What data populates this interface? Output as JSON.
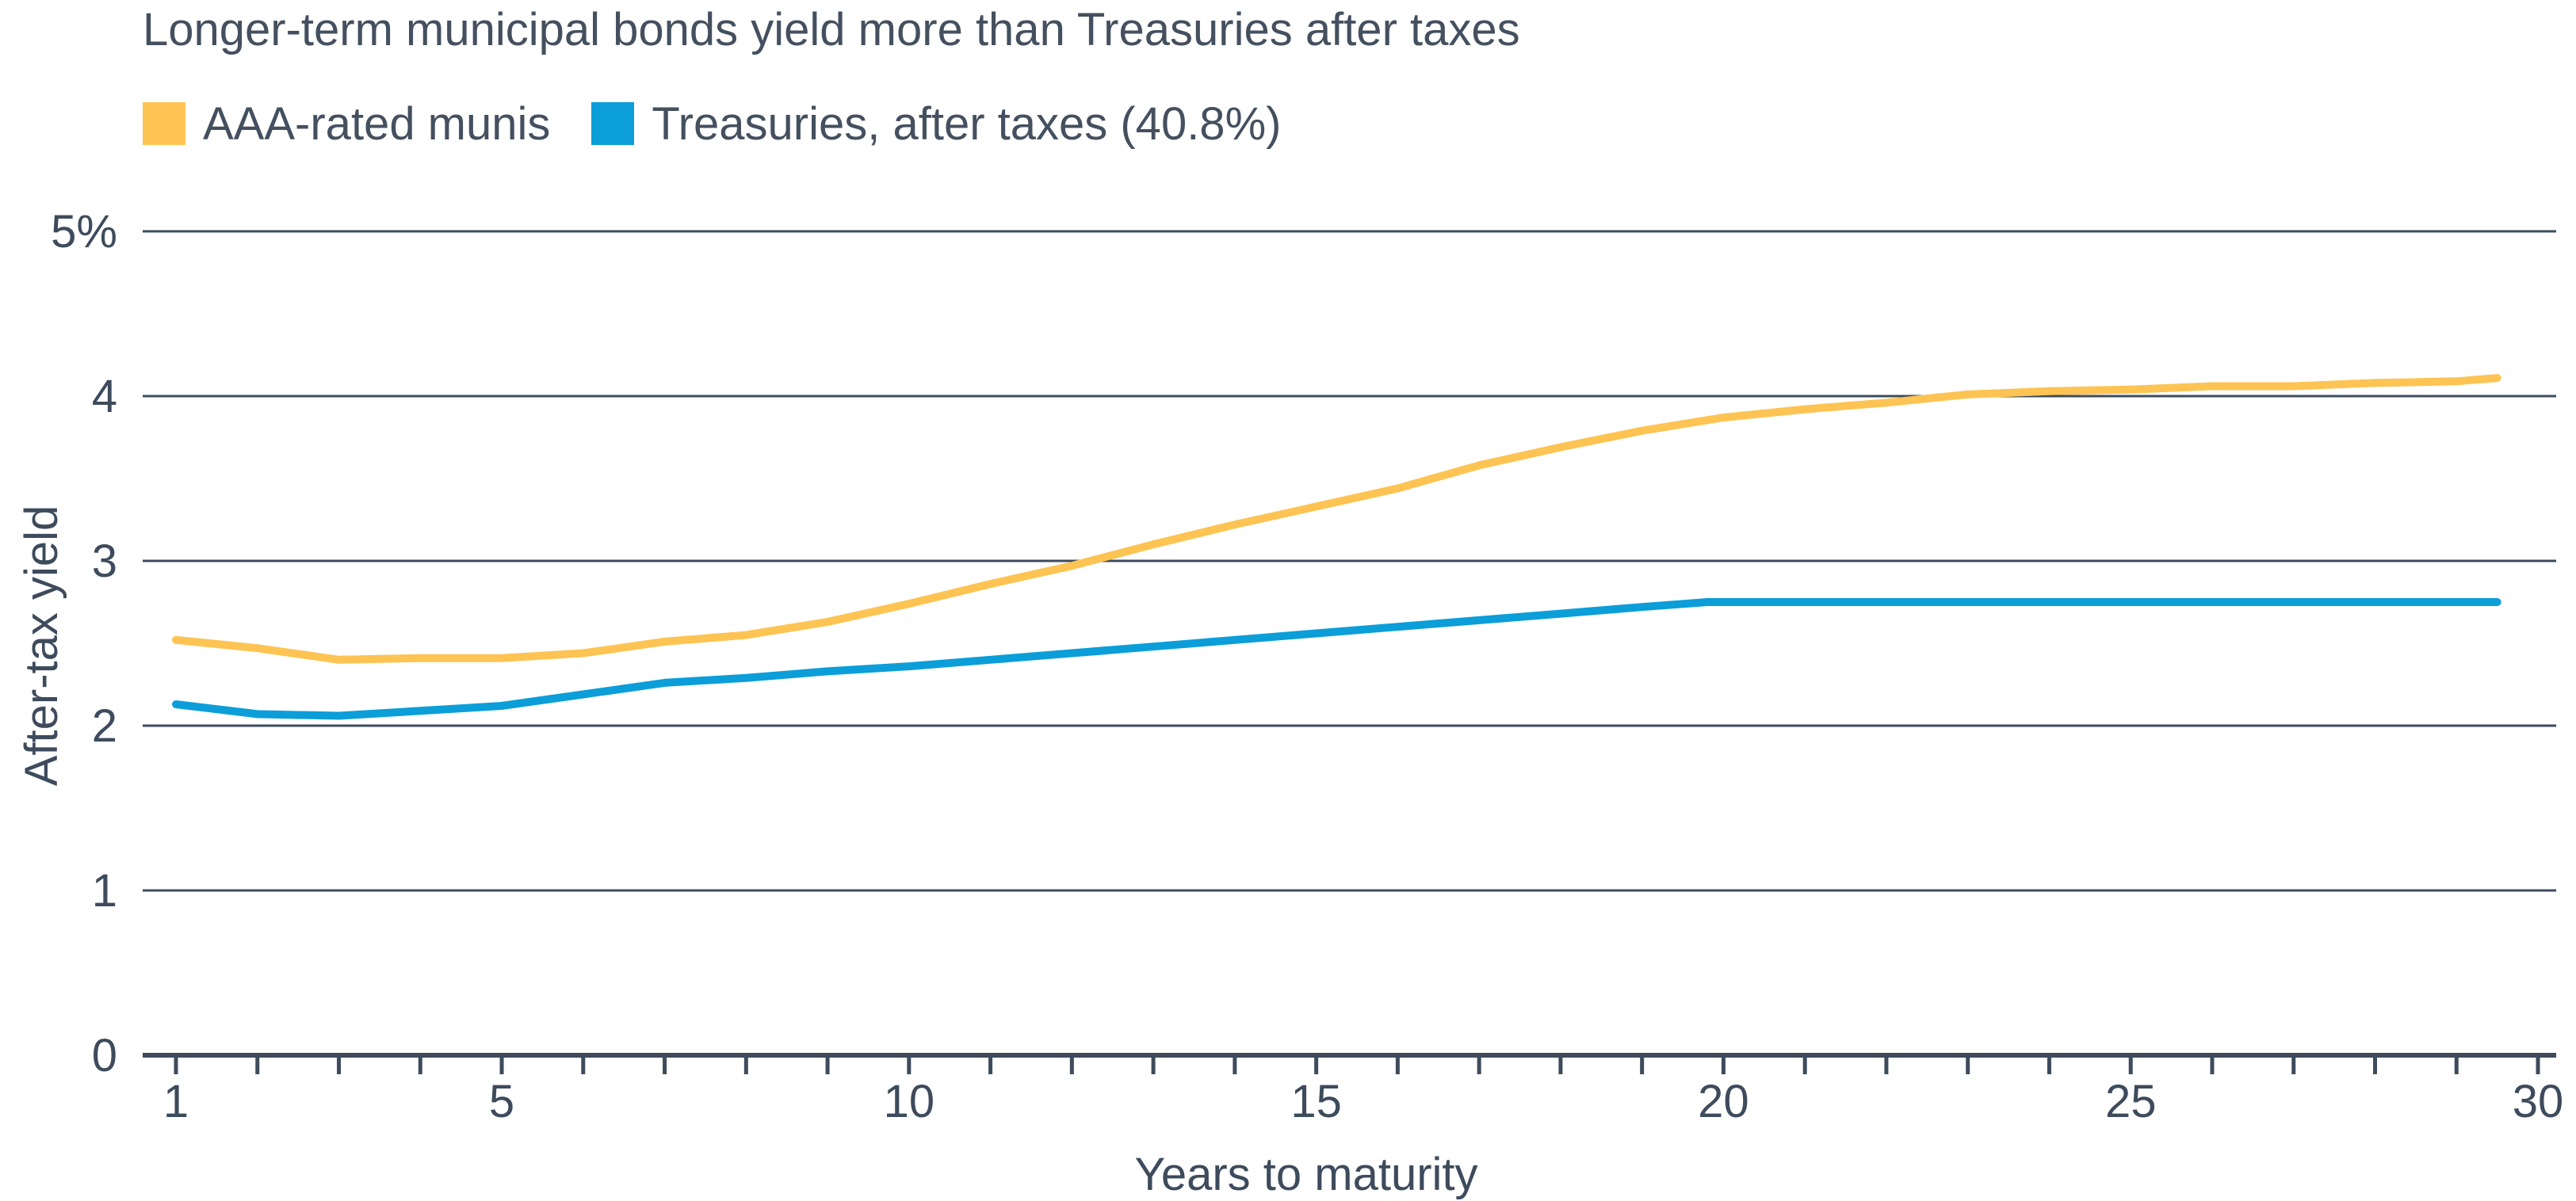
{
  "chart_data": {
    "type": "line",
    "title": "Longer-term municipal bonds yield more than Treasuries after taxes",
    "xlabel": "Years to maturity",
    "ylabel": "After-tax yield",
    "xlim": [
      0.6,
      30.2
    ],
    "ylim": [
      0,
      5
    ],
    "x_ticks": [
      1,
      5,
      10,
      15,
      20,
      25,
      30
    ],
    "y_ticks": [
      {
        "value": 0,
        "label": "0"
      },
      {
        "value": 1,
        "label": "1"
      },
      {
        "value": 2,
        "label": "2"
      },
      {
        "value": 3,
        "label": "3"
      },
      {
        "value": 4,
        "label": "4"
      },
      {
        "value": 5,
        "label": "5%"
      }
    ],
    "grid": "horizontal",
    "legend_position": "top-left",
    "series": [
      {
        "name": "AAA-rated munis",
        "color": "#fdc453",
        "points": [
          [
            1,
            2.52
          ],
          [
            2,
            2.47
          ],
          [
            3,
            2.4
          ],
          [
            4,
            2.41
          ],
          [
            5,
            2.41
          ],
          [
            6,
            2.44
          ],
          [
            7,
            2.51
          ],
          [
            8,
            2.55
          ],
          [
            9,
            2.63
          ],
          [
            10,
            2.74
          ],
          [
            11,
            2.86
          ],
          [
            12,
            2.97
          ],
          [
            13,
            3.1
          ],
          [
            14,
            3.22
          ],
          [
            15,
            3.33
          ],
          [
            16,
            3.44
          ],
          [
            17,
            3.58
          ],
          [
            18,
            3.69
          ],
          [
            19,
            3.79
          ],
          [
            20,
            3.87
          ],
          [
            21,
            3.92
          ],
          [
            22,
            3.96
          ],
          [
            23,
            4.01
          ],
          [
            24,
            4.03
          ],
          [
            25,
            4.04
          ],
          [
            26,
            4.06
          ],
          [
            27,
            4.06
          ],
          [
            28,
            4.08
          ],
          [
            29,
            4.09
          ],
          [
            29.5,
            4.11
          ]
        ]
      },
      {
        "name": "Treasuries, after taxes (40.8%)",
        "color": "#0b9ed9",
        "points": [
          [
            1,
            2.13
          ],
          [
            2,
            2.07
          ],
          [
            3,
            2.06
          ],
          [
            4,
            2.09
          ],
          [
            5,
            2.12
          ],
          [
            6,
            2.19
          ],
          [
            7,
            2.26
          ],
          [
            8,
            2.29
          ],
          [
            9,
            2.33
          ],
          [
            10,
            2.36
          ],
          [
            11,
            2.4
          ],
          [
            12,
            2.44
          ],
          [
            13,
            2.48
          ],
          [
            14,
            2.52
          ],
          [
            15,
            2.56
          ],
          [
            16,
            2.6
          ],
          [
            17,
            2.64
          ],
          [
            18,
            2.68
          ],
          [
            19,
            2.72
          ],
          [
            19.8,
            2.75
          ],
          [
            20,
            2.75
          ],
          [
            22,
            2.75
          ],
          [
            24,
            2.75
          ],
          [
            26,
            2.75
          ],
          [
            28,
            2.75
          ],
          [
            29.5,
            2.75
          ]
        ]
      }
    ]
  }
}
